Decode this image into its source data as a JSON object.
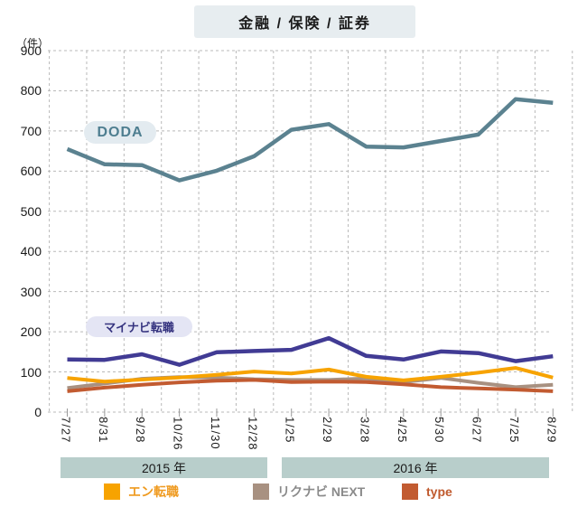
{
  "title": "金融 / 保険 / 証券",
  "y_axis": {
    "unit_label": "（件）",
    "tick_values": [
      900,
      800,
      700,
      600,
      500,
      400,
      300,
      200,
      100,
      0
    ]
  },
  "annotations": {
    "doda": "DODA",
    "mynavi": "マイナビ転職"
  },
  "x_axis_groups": [
    {
      "label": "2015 年"
    },
    {
      "label": "2016 年"
    }
  ],
  "legend": {
    "items": [
      {
        "key": "en",
        "label": "エン転職",
        "swatch_color": "#f7a300",
        "text_color": "#ef9a1f"
      },
      {
        "key": "rikunabi",
        "label": "リクナビ NEXT",
        "swatch_color": "#a89181",
        "text_color": "#8a8a8a"
      },
      {
        "key": "type",
        "label": "type",
        "swatch_color": "#c25b31",
        "text_color": "#c05a2e"
      }
    ]
  },
  "chart_data": {
    "type": "line",
    "title": "金融 / 保険 / 証券",
    "ylabel": "（件）",
    "ylim": [
      0,
      900
    ],
    "y_tick_step": 100,
    "grid": "dashed",
    "legend_position": "bottom",
    "categories": [
      "7/27",
      "8/31",
      "9/28",
      "10/26",
      "11/30",
      "12/28",
      "1/25",
      "2/29",
      "3/28",
      "4/25",
      "5/30",
      "6/27",
      "7/25",
      "8/29"
    ],
    "series": [
      {
        "key": "rikunabi",
        "name": "リクナビ NEXT",
        "color": "#a89181",
        "width": 4,
        "values": [
          60,
          71,
          83,
          87,
          86,
          82,
          80,
          80,
          84,
          75,
          85,
          73,
          62,
          68
        ]
      },
      {
        "key": "type",
        "name": "type",
        "color": "#c25b31",
        "width": 4,
        "values": [
          52,
          61,
          68,
          74,
          78,
          80,
          75,
          76,
          75,
          69,
          62,
          59,
          56,
          52
        ]
      },
      {
        "key": "en",
        "name": "エン転職",
        "color": "#f7a300",
        "width": 4,
        "values": [
          85,
          76,
          81,
          86,
          93,
          101,
          96,
          106,
          88,
          79,
          88,
          98,
          110,
          86
        ]
      },
      {
        "key": "mynavi",
        "name": "マイナビ転職",
        "color": "#413b94",
        "width": 4.5,
        "values": [
          131,
          130,
          144,
          118,
          149,
          152,
          155,
          184,
          140,
          131,
          151,
          147,
          127,
          139
        ]
      },
      {
        "key": "doda",
        "name": "DODA",
        "color": "#5b8290",
        "width": 4.5,
        "values": [
          655,
          617,
          615,
          577,
          601,
          637,
          703,
          717,
          661,
          659,
          675,
          691,
          779,
          770
        ]
      }
    ]
  }
}
